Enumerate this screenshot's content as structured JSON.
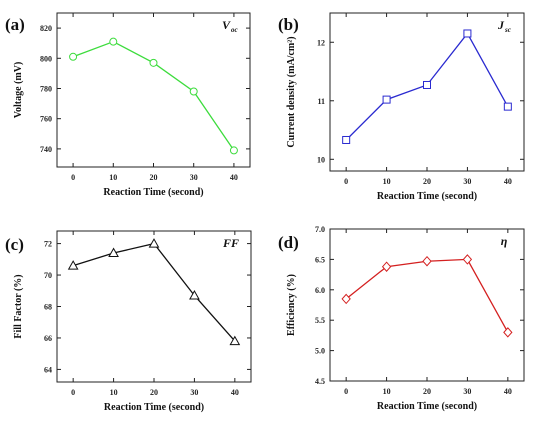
{
  "chart_data": [
    {
      "type": "line",
      "panel_label": "(a)",
      "corner_label": "V",
      "corner_sub": "oc",
      "xlabel": "Reaction Time (second)",
      "ylabel": "Voltage (mV)",
      "x": [
        0,
        10,
        20,
        30,
        40
      ],
      "x_ticks": [
        0,
        10,
        20,
        30,
        40
      ],
      "x_tick_labels": [
        "0",
        "10",
        "20",
        "30",
        "40"
      ],
      "xlim": [
        -4,
        44
      ],
      "ylim": [
        728,
        830
      ],
      "y_ticks": [
        740,
        760,
        780,
        800,
        820
      ],
      "y_tick_labels": [
        "740",
        "760",
        "780",
        "800",
        "820"
      ],
      "marker": "circle",
      "color": "#3ddc3d",
      "series": [
        {
          "values": [
            801,
            811,
            797,
            778,
            739
          ]
        }
      ]
    },
    {
      "type": "line",
      "panel_label": "(b)",
      "corner_label": "J",
      "corner_sub": "sc",
      "xlabel": "Reaction Time (second)",
      "ylabel": "Current density (mA/cm²)",
      "x": [
        0,
        10,
        20,
        30,
        40
      ],
      "x_ticks": [
        0,
        10,
        20,
        30,
        40
      ],
      "x_tick_labels": [
        "0",
        "10",
        "20",
        "30",
        "40"
      ],
      "xlim": [
        -4,
        44
      ],
      "ylim": [
        9.8,
        12.5
      ],
      "y_ticks": [
        10,
        11,
        12
      ],
      "y_tick_labels": [
        "10",
        "11",
        "12"
      ],
      "marker": "square",
      "color": "#2a2ad0",
      "series": [
        {
          "values": [
            10.33,
            11.02,
            11.27,
            12.15,
            10.9
          ]
        }
      ]
    },
    {
      "type": "line",
      "panel_label": "(c)",
      "corner_label": "FF",
      "corner_sub": "",
      "xlabel": "Reaction Time (second)",
      "ylabel": "Fill Factor (%)",
      "x": [
        0,
        10,
        20,
        30,
        40
      ],
      "x_ticks": [
        0,
        10,
        20,
        30,
        40
      ],
      "x_tick_labels": [
        "0",
        "10",
        "20",
        "30",
        "40"
      ],
      "xlim": [
        -4,
        44
      ],
      "ylim": [
        63.2,
        72.8
      ],
      "y_ticks": [
        64,
        66,
        68,
        70,
        72
      ],
      "y_tick_labels": [
        "64",
        "66",
        "68",
        "70",
        "72"
      ],
      "marker": "triangle",
      "color": "#111111",
      "series": [
        {
          "values": [
            70.6,
            71.4,
            72.0,
            68.7,
            65.8
          ]
        }
      ]
    },
    {
      "type": "line",
      "panel_label": "(d)",
      "corner_label": "η",
      "corner_sub": "",
      "xlabel": "Reaction Time (second)",
      "ylabel": "Efficiency (%)",
      "x": [
        0,
        10,
        20,
        30,
        40
      ],
      "x_ticks": [
        0,
        10,
        20,
        30,
        40
      ],
      "x_tick_labels": [
        "0",
        "10",
        "20",
        "30",
        "40"
      ],
      "xlim": [
        -4,
        44
      ],
      "ylim": [
        4.5,
        7.0
      ],
      "y_ticks": [
        4.5,
        5.0,
        5.5,
        6.0,
        6.5,
        7.0
      ],
      "y_tick_labels": [
        "4.5",
        "5.0",
        "5.5",
        "6.0",
        "6.5",
        "7.0"
      ],
      "marker": "diamond",
      "color": "#d42020",
      "series": [
        {
          "values": [
            5.85,
            6.38,
            6.47,
            6.5,
            5.3
          ]
        }
      ]
    }
  ]
}
